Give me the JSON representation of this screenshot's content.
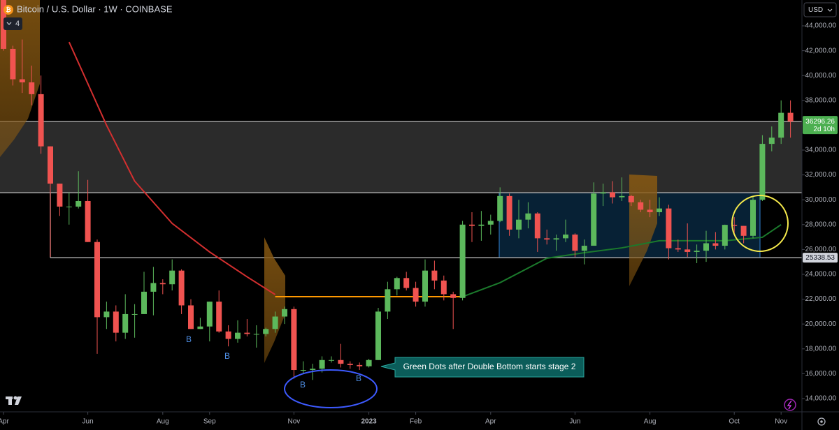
{
  "chart_data": {
    "type": "candlestick",
    "title": "Bitcoin / U.S. Dollar · 1W · COINBASE",
    "indicator_count": 4,
    "currency": "USD",
    "up_color": "#5cb85c",
    "down_color": "#f05350",
    "ylim": [
      12930,
      46080
    ],
    "yticks": [
      {
        "value": 44000,
        "label": "44,000.00"
      },
      {
        "value": 42000,
        "label": "42,000.00"
      },
      {
        "value": 40000,
        "label": "40,000.00"
      },
      {
        "value": 38000,
        "label": "38,000.00"
      },
      {
        "value": 34000,
        "label": "34,000.00"
      },
      {
        "value": 32000,
        "label": "32,000.00"
      },
      {
        "value": 30000,
        "label": "30,000.00"
      },
      {
        "value": 28000,
        "label": "28,000.00"
      },
      {
        "value": 26000,
        "label": "26,000.00"
      },
      {
        "value": 24000,
        "label": "24,000.00"
      },
      {
        "value": 22000,
        "label": "22,000.00"
      },
      {
        "value": 20000,
        "label": "20,000.00"
      },
      {
        "value": 18000,
        "label": "18,000.00"
      },
      {
        "value": 16000,
        "label": "16,000.00"
      },
      {
        "value": 14000,
        "label": "14,000.00"
      }
    ],
    "xticks": [
      {
        "value": 0,
        "label": "Apr"
      },
      {
        "value": 9,
        "label": "Jun"
      },
      {
        "value": 17,
        "label": "Aug"
      },
      {
        "value": 22,
        "label": "Sep"
      },
      {
        "value": 31,
        "label": "Nov"
      },
      {
        "value": 39,
        "label": "2023"
      },
      {
        "value": 44,
        "label": "Feb"
      },
      {
        "value": 52,
        "label": "Apr"
      },
      {
        "value": 61,
        "label": "Jun"
      },
      {
        "value": 69,
        "label": "Aug"
      },
      {
        "value": 78,
        "label": "Oct"
      },
      {
        "value": 83,
        "label": "Nov"
      }
    ],
    "open": [
      46400,
      42150,
      39700,
      39450,
      38500,
      34300,
      31300,
      29450,
      29450,
      29900,
      26600,
      20550,
      21000,
      19300,
      20800,
      20800,
      22600,
      23300,
      23200,
      24300,
      21500,
      19600,
      19800,
      21800,
      19400,
      18800,
      19300,
      19200,
      19200,
      19600,
      20600,
      21200,
      16300,
      16300,
      16400,
      17100,
      17100,
      16800,
      16700,
      16600,
      17100,
      21000,
      22800,
      23700,
      22900,
      21800,
      24300,
      23500,
      22400,
      22100,
      28000,
      27900,
      28000,
      28300,
      30300,
      27600,
      28400,
      28900,
      26900,
      26800,
      26900,
      27200,
      25900,
      26300,
      30500,
      30600,
      30200,
      30300,
      29800,
      29200,
      29000,
      29300,
      26100,
      26000,
      25800,
      25900,
      26500,
      26300,
      27980,
      27900,
      27100,
      30000,
      34500,
      35000,
      37000
    ],
    "high": [
      47200,
      42400,
      42900,
      40800,
      40000,
      34300,
      31300,
      30600,
      32300,
      31600,
      26800,
      21800,
      21500,
      22400,
      21600,
      24200,
      24600,
      23600,
      25200,
      24400,
      22000,
      20500,
      21800,
      22700,
      19900,
      20300,
      20400,
      19900,
      19700,
      21000,
      21400,
      21400,
      17000,
      16800,
      17400,
      17400,
      18400,
      17000,
      16900,
      17200,
      21300,
      23400,
      23800,
      24200,
      23400,
      25200,
      25100,
      23900,
      22600,
      28300,
      29000,
      29100,
      28800,
      31000,
      30500,
      30000,
      29800,
      29000,
      27600,
      27200,
      28400,
      27300,
      26800,
      31400,
      31300,
      31500,
      31800,
      30400,
      30000,
      30000,
      30200,
      29600,
      26800,
      28100,
      26400,
      27500,
      27400,
      28000,
      28600,
      27900,
      30300,
      35200,
      35900,
      38000,
      38000
    ],
    "low": [
      42000,
      39200,
      38600,
      37600,
      33700,
      25400,
      28700,
      28000,
      29300,
      26600,
      17600,
      19600,
      18600,
      18800,
      18900,
      20800,
      20700,
      22400,
      22700,
      20800,
      19600,
      19600,
      18600,
      19300,
      18200,
      18500,
      19000,
      18100,
      19000,
      19300,
      20000,
      15600,
      16000,
      15500,
      16100,
      16900,
      16500,
      16400,
      16300,
      16500,
      17100,
      20400,
      22300,
      22700,
      21400,
      21400,
      22800,
      21900,
      19600,
      21900,
      26600,
      26700,
      27200,
      28200,
      27100,
      26900,
      27700,
      25800,
      26400,
      25900,
      26600,
      25400,
      24800,
      26300,
      29500,
      29700,
      29900,
      29500,
      29000,
      28600,
      28700,
      25200,
      25800,
      25400,
      24900,
      25000,
      26000,
      26000,
      27200,
      26500,
      26900,
      29900,
      33900,
      34500,
      35000
    ],
    "close": [
      42150,
      39700,
      39450,
      38500,
      34300,
      31300,
      29450,
      29450,
      29900,
      26600,
      20550,
      21000,
      19300,
      20800,
      20800,
      22600,
      23300,
      23200,
      24300,
      21500,
      19600,
      19800,
      21800,
      19400,
      18800,
      19300,
      19200,
      19200,
      19600,
      20600,
      21200,
      16300,
      16300,
      16400,
      17100,
      17100,
      16800,
      16700,
      16600,
      17100,
      21000,
      22800,
      23700,
      22900,
      21800,
      24300,
      23500,
      22400,
      22100,
      28000,
      27900,
      28000,
      28300,
      30300,
      27600,
      28400,
      28900,
      26900,
      26800,
      26900,
      27200,
      25900,
      26300,
      30500,
      30600,
      30200,
      30300,
      29800,
      29200,
      29000,
      29300,
      26100,
      26000,
      25800,
      25900,
      26500,
      26300,
      27980,
      27900,
      27100,
      30000,
      34500,
      35000,
      37000,
      36296.26
    ],
    "ma": [
      {
        "color": "#d32f2f",
        "x": [
          7,
          11,
          14,
          18,
          22,
          26,
          29
        ],
        "values": [
          42700,
          36000,
          31500,
          28100,
          25800,
          23800,
          22370
        ]
      },
      {
        "color": "#ff9800",
        "x": [
          29,
          49
        ],
        "values": [
          22200,
          22200
        ]
      },
      {
        "color": "#1b7a2c",
        "x": [
          49,
          53,
          58,
          62,
          66,
          70,
          77,
          81,
          83
        ],
        "values": [
          22200,
          23330,
          25290,
          25740,
          26130,
          26700,
          26700,
          26980,
          28000
        ]
      }
    ],
    "last_price": 36296.26,
    "countdown": "2d 10h",
    "level": 25338.53,
    "band_low": 30570,
    "b_labels": [
      "B",
      "B",
      "B",
      "B"
    ],
    "annotation": "Green Dots after Double Bottom starts stage 2"
  }
}
